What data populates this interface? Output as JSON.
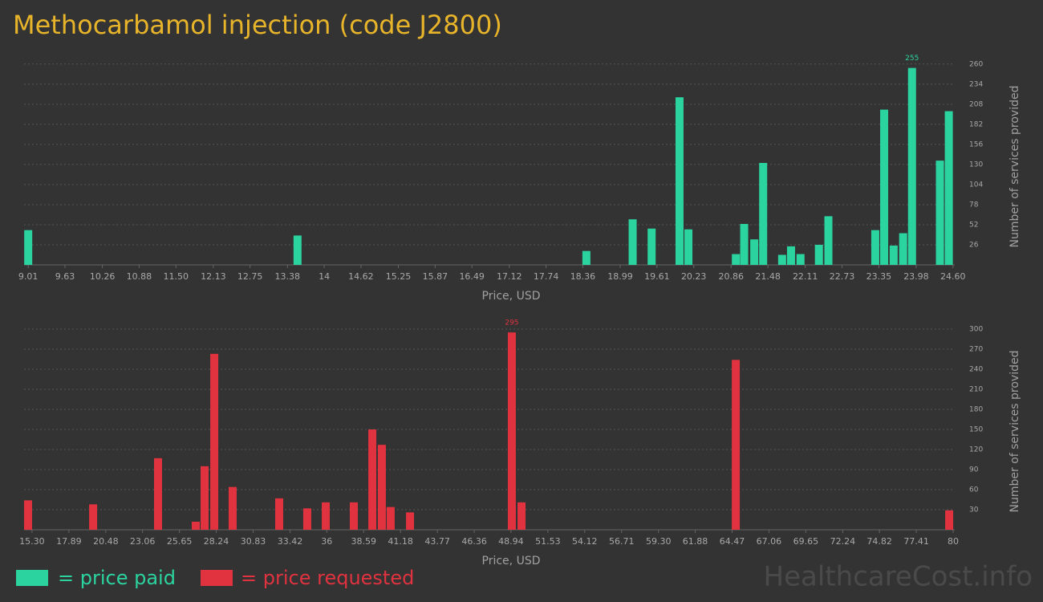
{
  "title": "Methocarbamol injection (code J2800)",
  "watermark": "HealthcareCost.info",
  "chart_data": [
    {
      "type": "bar",
      "x": [
        9.01,
        13.55,
        18.42,
        19.2,
        19.52,
        19.99,
        20.14,
        20.94,
        21.08,
        21.25,
        21.4,
        21.72,
        21.87,
        22.03,
        22.34,
        22.5,
        23.29,
        23.44,
        23.6,
        23.76,
        23.91,
        24.38,
        24.53
      ],
      "series": [
        {
          "name": "= price paid",
          "color": "#2bd39f",
          "values": [
            45,
            38,
            18,
            59,
            47,
            217,
            46,
            14,
            53,
            33,
            132,
            13,
            24,
            14,
            26,
            63,
            45,
            201,
            25,
            41,
            255,
            135,
            199
          ]
        }
      ],
      "xlim": [
        8.94,
        24.63
      ],
      "xticks": [
        9.01,
        9.63,
        10.26,
        10.88,
        {
          "value": 11.5,
          "label": "11.50"
        },
        12.13,
        12.75,
        13.38,
        14,
        14.62,
        15.25,
        15.87,
        16.49,
        17.12,
        17.74,
        18.36,
        18.99,
        19.61,
        20.23,
        20.86,
        21.48,
        22.11,
        22.73,
        23.35,
        23.98,
        {
          "value": 24.6,
          "label": "24.60"
        }
      ],
      "ylim": [
        0,
        265
      ],
      "yticks": [
        26,
        52,
        78,
        104,
        130,
        156,
        182,
        208,
        234,
        260
      ],
      "xlabel": "Price, USD",
      "ylabel": "Number of services provided",
      "grid": true
    },
    {
      "type": "bar",
      "x": [
        15.02,
        19.59,
        24.15,
        26.8,
        27.42,
        28.1,
        29.39,
        32.66,
        34.63,
        35.93,
        37.9,
        39.2,
        39.87,
        40.49,
        41.85,
        49.0,
        49.68,
        64.73,
        79.72
      ],
      "series": [
        {
          "name": "= price requested",
          "color": "#e0323f",
          "values": [
            44,
            38,
            107,
            12,
            95,
            263,
            64,
            47,
            32,
            41,
            41,
            150,
            127,
            34,
            26,
            295,
            41,
            254,
            29
          ]
        }
      ],
      "xlim": [
        14.74,
        80.11
      ],
      "xticks": [
        {
          "value": 15.3,
          "label": "15.30"
        },
        17.89,
        20.48,
        23.06,
        25.65,
        28.24,
        30.83,
        33.42,
        36,
        38.59,
        41.18,
        43.77,
        46.36,
        48.94,
        51.53,
        54.12,
        56.71,
        {
          "value": 59.3,
          "label": "59.30"
        },
        61.88,
        64.47,
        67.06,
        69.65,
        72.24,
        74.82,
        77.41,
        80
      ],
      "ylim": [
        0,
        306
      ],
      "yticks": [
        30,
        60,
        90,
        120,
        150,
        180,
        210,
        240,
        270,
        300
      ],
      "xlabel": "Price, USD",
      "ylabel": "Number of services provided",
      "grid": true
    }
  ]
}
